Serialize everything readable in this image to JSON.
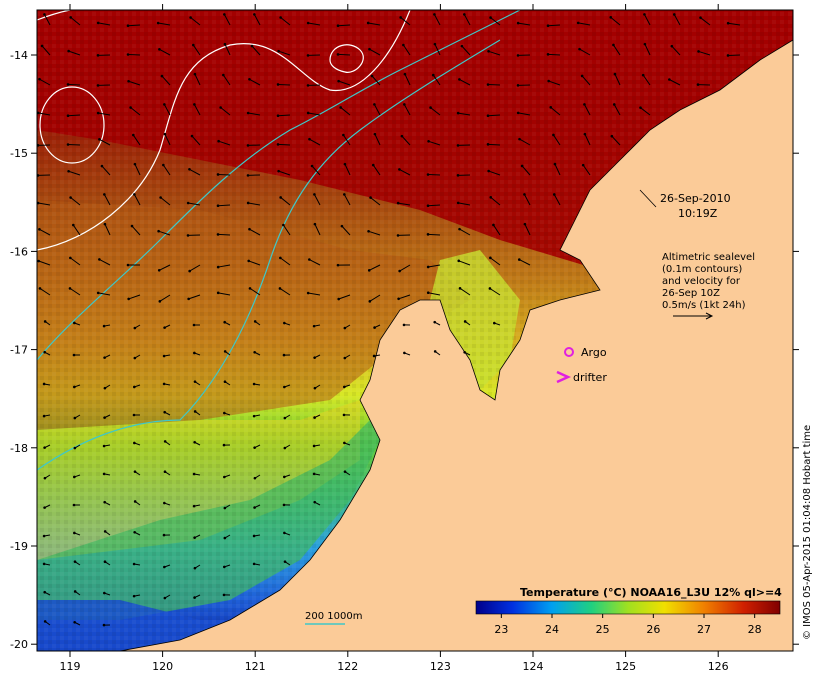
{
  "map": {
    "lon_ticks": [
      "119",
      "120",
      "121",
      "122",
      "123",
      "124",
      "125",
      "126"
    ],
    "lat_ticks": [
      "-14",
      "-15",
      "-16",
      "-17",
      "-18",
      "-19",
      "-20"
    ],
    "date_label": "26-Sep-2010",
    "time_label": "10:19Z",
    "altimetry_note": [
      "Altimetric sealevel",
      "(0.1m contours)",
      "and velocity for",
      "26-Sep 10Z",
      "0.5m/s (1kt 24h)"
    ],
    "argo_label": "Argo",
    "drifter_label": "drifter",
    "depth_legend": "200  1000m",
    "credit": "© IMOS 05-Apr-2015 01:04:08 Hobart time"
  },
  "colorbar": {
    "title": "Temperature (°C) NOAA16_L3U 12% ql>=4",
    "ticks": [
      "23",
      "24",
      "25",
      "26",
      "27",
      "28"
    ],
    "range": [
      22.5,
      28.5
    ]
  },
  "colors": {
    "land": "#fbcb98",
    "warm": "#a30000",
    "argo": "#e020e0",
    "drifter": "#e020e0",
    "isobath": "#3fc8c8"
  }
}
